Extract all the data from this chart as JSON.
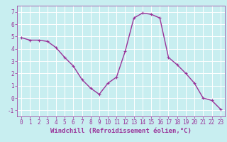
{
  "xlabel": "Windchill (Refroidissement éolien,°C)",
  "x": [
    0,
    1,
    2,
    3,
    4,
    5,
    6,
    7,
    8,
    9,
    10,
    11,
    12,
    13,
    14,
    15,
    16,
    17,
    18,
    19,
    20,
    21,
    22,
    23
  ],
  "y": [
    4.9,
    4.7,
    4.7,
    4.6,
    4.1,
    3.3,
    2.6,
    1.5,
    0.8,
    0.3,
    1.2,
    1.7,
    3.8,
    6.5,
    6.9,
    6.8,
    6.5,
    3.3,
    2.7,
    2.0,
    1.2,
    0.0,
    -0.2,
    -0.9
  ],
  "line_color": "#993399",
  "marker": "+",
  "marker_size": 3,
  "marker_linewidth": 0.8,
  "bg_color": "#c8eef0",
  "grid_color": "#ffffff",
  "tick_color": "#993399",
  "label_color": "#993399",
  "ylim": [
    -1.5,
    7.5
  ],
  "xlim": [
    -0.5,
    23.5
  ],
  "yticks": [
    -1,
    0,
    1,
    2,
    3,
    4,
    5,
    6,
    7
  ],
  "xticks": [
    0,
    1,
    2,
    3,
    4,
    5,
    6,
    7,
    8,
    9,
    10,
    11,
    12,
    13,
    14,
    15,
    16,
    17,
    18,
    19,
    20,
    21,
    22,
    23
  ],
  "linewidth": 1.0,
  "tick_fontsize": 5.5,
  "label_fontsize": 6.5
}
